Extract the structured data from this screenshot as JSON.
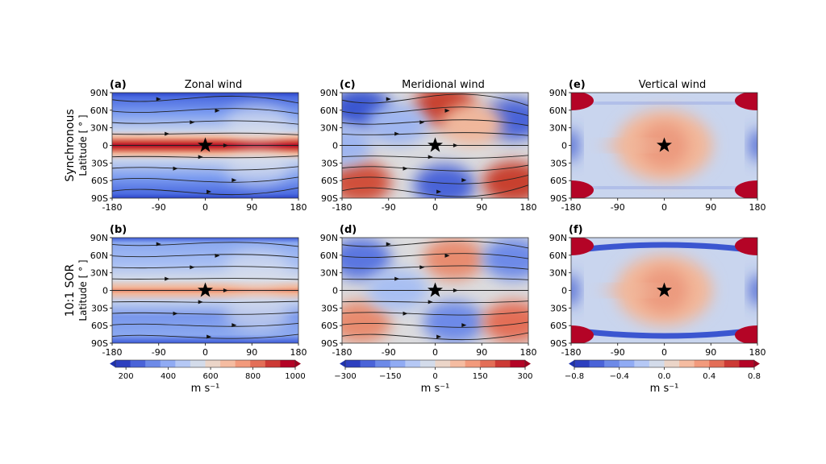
{
  "chart_data": {
    "type": "heatmap",
    "rows": [
      {
        "label": "Synchronous",
        "ylabel": "Latitude [ ° ]"
      },
      {
        "label": "10:1 SOR",
        "ylabel": "Latitude [ ° ]"
      }
    ],
    "columns": [
      {
        "title": "Zonal wind",
        "colorbar": {
          "ticks": [
            "200",
            "400",
            "600",
            "800",
            "1000"
          ],
          "range": [
            150,
            1000
          ],
          "unit": "m s⁻¹"
        }
      },
      {
        "title": "Meridional wind",
        "colorbar": {
          "ticks": [
            "−300",
            "−150",
            "0",
            "150",
            "300"
          ],
          "range": [
            -300,
            300
          ],
          "unit": "m s⁻¹"
        }
      },
      {
        "title": "Vertical wind",
        "colorbar": {
          "ticks": [
            "−0.8",
            "−0.4",
            "0.0",
            "0.4",
            "0.8"
          ],
          "range": [
            -0.8,
            0.8
          ],
          "unit": "m s⁻¹"
        }
      }
    ],
    "panels": [
      {
        "letter": "(a)",
        "row": 0,
        "col": 0
      },
      {
        "letter": "(c)",
        "row": 0,
        "col": 1
      },
      {
        "letter": "(e)",
        "row": 0,
        "col": 2
      },
      {
        "letter": "(b)",
        "row": 1,
        "col": 0
      },
      {
        "letter": "(d)",
        "row": 1,
        "col": 1
      },
      {
        "letter": "(f)",
        "row": 1,
        "col": 2
      }
    ],
    "xticks": [
      "-180",
      "-90",
      "0",
      "90",
      "180"
    ],
    "xlim": [
      -180,
      180
    ],
    "yticks": [
      "90N",
      "60N",
      "30N",
      "0",
      "30S",
      "60S",
      "90S"
    ],
    "ylim": [
      -90,
      90
    ],
    "marker": {
      "symbol": "star",
      "lon": 0,
      "lat": 0
    },
    "colormap": {
      "low": "#3a4cc0",
      "mid": "#dddddd",
      "high": "#b40426"
    }
  }
}
